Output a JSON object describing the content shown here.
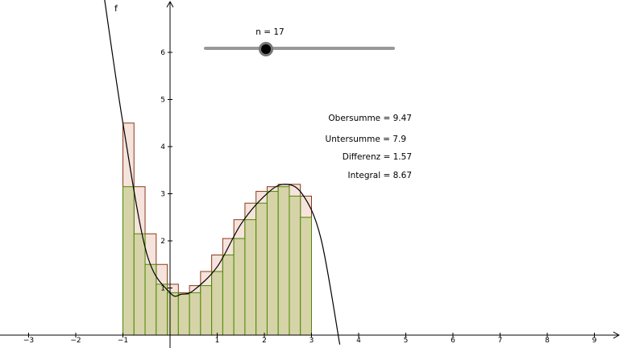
{
  "function": {
    "label": "f"
  },
  "slider": {
    "caption": "n = 17",
    "value": 17,
    "min": 1,
    "max": 50
  },
  "results": {
    "obersumme": "Obersumme = 9.47",
    "untersumme": "Untersumme = 7.9",
    "differenz": "Differenz = 1.57",
    "integral": "Integral = 8.67"
  },
  "axes": {
    "x_ticks": [
      "−3",
      "−2",
      "−1",
      "1",
      "2",
      "3",
      "4",
      "5",
      "6",
      "7",
      "8",
      "9"
    ],
    "y_ticks": [
      "1",
      "2",
      "3",
      "4",
      "5",
      "6"
    ]
  },
  "colors": {
    "upper_fill": "#f5e3dc",
    "upper_stroke": "#8b3a1a",
    "lower_fill": "#d6d3a8",
    "lower_stroke": "#4a8a00",
    "curve": "#000000"
  },
  "chart_data": {
    "type": "area",
    "interval": [
      -1,
      3
    ],
    "n": 17,
    "upper_sum": 9.47,
    "lower_sum": 7.9,
    "difference": 1.57,
    "integral": 8.67,
    "curve_points": {
      "x": [
        -1.4,
        -1.0,
        -0.5,
        0.0,
        0.25,
        0.5,
        1.0,
        1.5,
        2.0,
        2.4,
        2.8,
        3.2,
        3.6
      ],
      "y": [
        7.2,
        4.5,
        1.75,
        0.9,
        0.87,
        0.95,
        1.45,
        2.35,
        2.95,
        3.2,
        3.0,
        2.05,
        -0.2
      ]
    },
    "upper_rect_heights": [
      4.5,
      3.15,
      2.15,
      1.5,
      1.08,
      0.9,
      1.05,
      1.35,
      1.7,
      2.05,
      2.45,
      2.8,
      3.05,
      3.15,
      3.2,
      3.2,
      2.95
    ],
    "lower_rect_heights": [
      3.15,
      2.15,
      1.5,
      1.08,
      0.9,
      0.87,
      0.9,
      1.05,
      1.35,
      1.7,
      2.05,
      2.45,
      2.8,
      3.05,
      3.15,
      2.95,
      2.5
    ]
  }
}
